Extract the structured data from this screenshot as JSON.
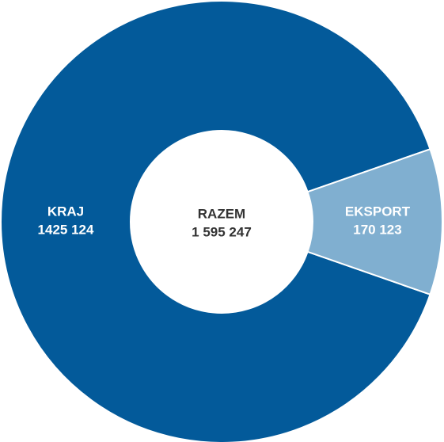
{
  "chart_data": {
    "type": "donut",
    "categories": [
      "KRAJ",
      "EKSPORT"
    ],
    "values": [
      1425124,
      170123
    ],
    "value_labels": [
      "1425 124",
      "170 123"
    ],
    "colors": [
      "#035a9a",
      "#80afd0"
    ],
    "center_label": "RAZEM",
    "center_value_label": "1 595 247"
  }
}
